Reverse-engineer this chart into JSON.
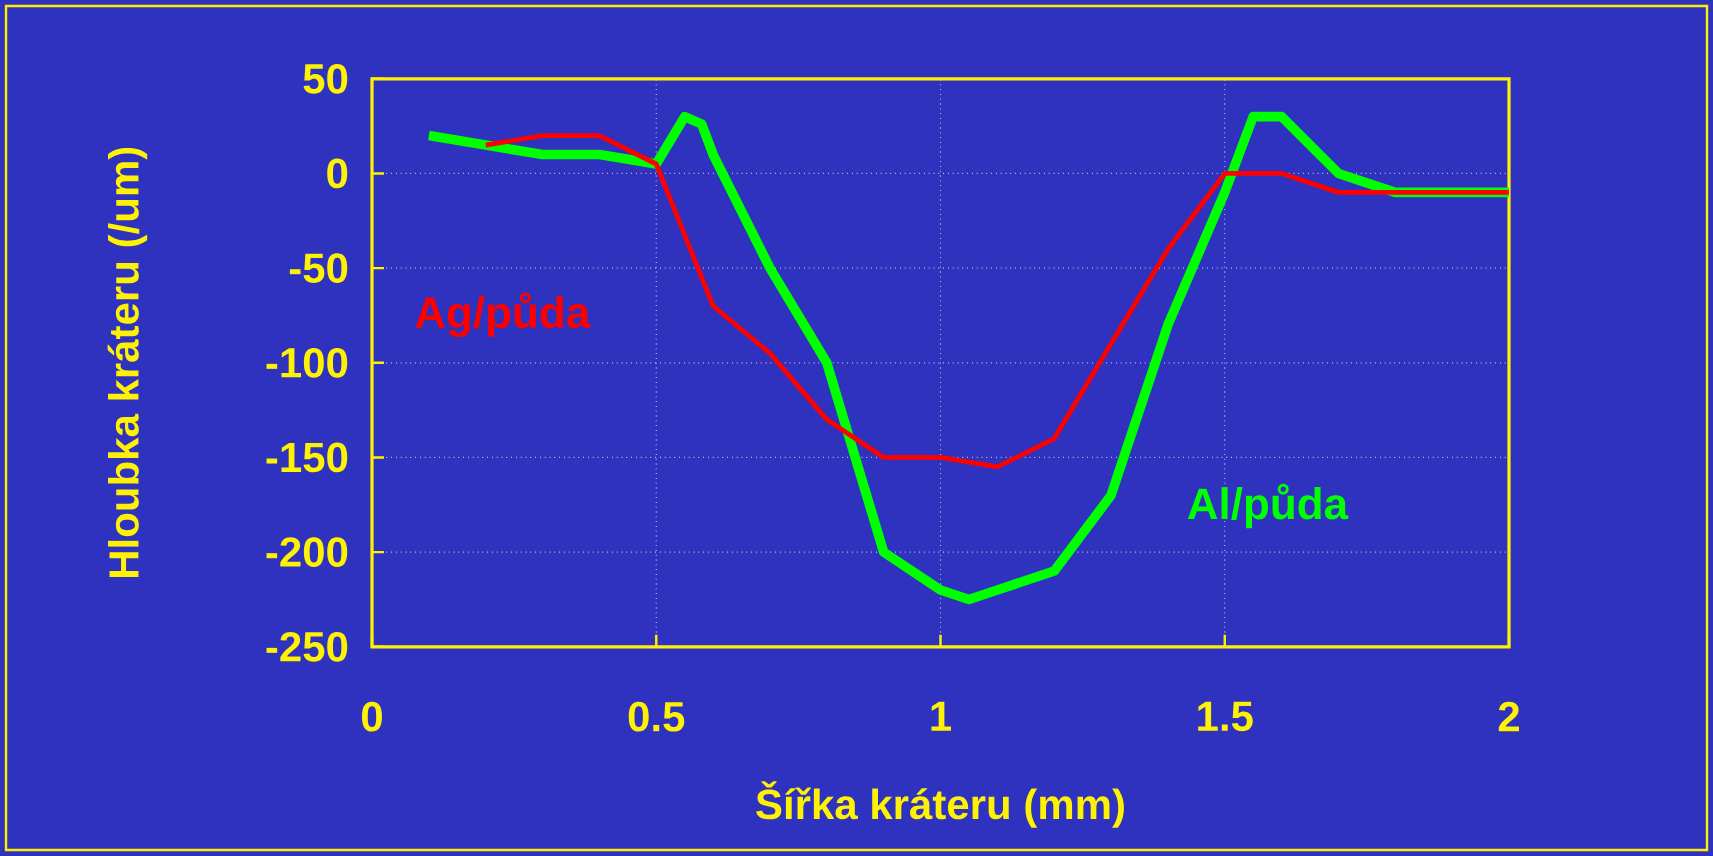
{
  "chart_data": {
    "type": "line",
    "xlabel": "Šířka kráteru (mm)",
    "ylabel": "Hloubka kráteru (/um)",
    "xlim": [
      0,
      2
    ],
    "xticks": [
      0,
      0.5,
      1,
      1.5,
      2
    ],
    "ylim": [
      -250,
      50
    ],
    "yticks": [
      50,
      0,
      -50,
      -100,
      -150,
      -200,
      -250
    ],
    "grid": true,
    "series": [
      {
        "name": "Al/půda",
        "color": "#00ff00",
        "x": [
          0.1,
          0.2,
          0.3,
          0.4,
          0.5,
          0.55,
          0.58,
          0.6,
          0.7,
          0.8,
          0.9,
          1.0,
          1.05,
          1.1,
          1.2,
          1.3,
          1.4,
          1.5,
          1.55,
          1.6,
          1.7,
          1.8,
          1.9,
          2.0
        ],
        "values": [
          20,
          15,
          10,
          10,
          5,
          30,
          26,
          10,
          -50,
          -100,
          -200,
          -220,
          -225,
          -220,
          -210,
          -170,
          -80,
          -10,
          30,
          30,
          0,
          -10,
          -10,
          -10
        ]
      },
      {
        "name": "Ag/půda",
        "color": "#ff0000",
        "x": [
          0.2,
          0.3,
          0.4,
          0.5,
          0.6,
          0.7,
          0.8,
          0.9,
          1.0,
          1.1,
          1.2,
          1.3,
          1.4,
          1.5,
          1.6,
          1.7,
          1.8,
          1.9,
          2.0
        ],
        "values": [
          15,
          20,
          20,
          5,
          -70,
          -95,
          -130,
          -150,
          -150,
          -155,
          -140,
          -90,
          -40,
          0,
          0,
          -10,
          -10,
          -10,
          -10
        ]
      }
    ]
  }
}
